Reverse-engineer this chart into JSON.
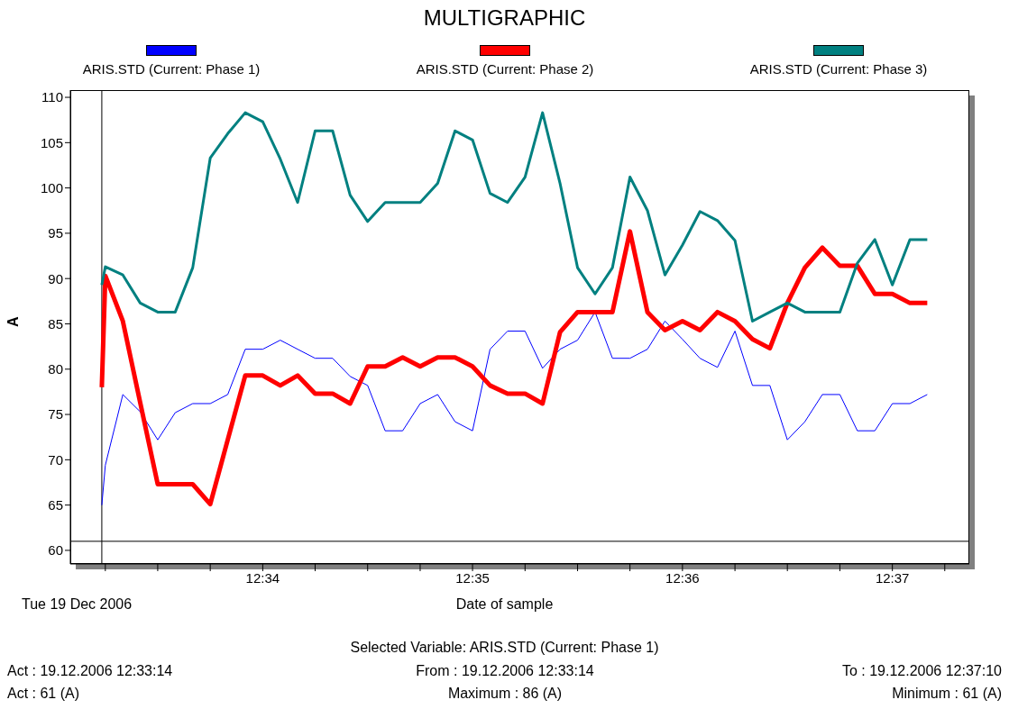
{
  "chart_data": {
    "type": "line",
    "title": "MULTIGRAPHIC",
    "xlabel": "Date of sample",
    "ylabel": "A",
    "x": [
      12.55389,
      12.55417,
      12.55556,
      12.55694,
      12.55833,
      12.55972,
      12.56111,
      12.5625,
      12.56389,
      12.56528,
      12.56667,
      12.56806,
      12.56944,
      12.57083,
      12.57222,
      12.57361,
      12.575,
      12.57639,
      12.57778,
      12.57917,
      12.58056,
      12.58194,
      12.58333,
      12.58472,
      12.58611,
      12.5875,
      12.58889,
      12.59028,
      12.59167,
      12.59306,
      12.59444,
      12.59583,
      12.59722,
      12.59861,
      12.6,
      12.60139,
      12.60278,
      12.60417,
      12.60556,
      12.60694,
      12.60833,
      12.60972,
      12.61111,
      12.6125,
      12.61389,
      12.61528,
      12.61667,
      12.61806,
      12.61944
    ],
    "series": [
      {
        "name": "ARIS.STD (Current: Phase 1)",
        "color": "#0000ff",
        "values": [
          65,
          69.4,
          77.2,
          75.3,
          72.2,
          75.2,
          76.2,
          76.2,
          77.2,
          82.2,
          82.2,
          83.2,
          82.2,
          81.2,
          81.2,
          79.2,
          78.2,
          73.2,
          73.2,
          76.2,
          77.2,
          74.2,
          73.2,
          82.2,
          84.2,
          84.2,
          80.1,
          82.2,
          83.2,
          86.3,
          81.2,
          81.2,
          82.2,
          85.3,
          83.3,
          81.2,
          80.2,
          84.2,
          78.2,
          78.2,
          72.2,
          74.2,
          77.2,
          77.2,
          73.2,
          73.2,
          76.2,
          76.2,
          77.2
        ]
      },
      {
        "name": "ARIS.STD (Current: Phase 2)",
        "color": "#ff0000",
        "values": [
          78,
          90.3,
          85.3,
          76.3,
          67.3,
          67.3,
          67.3,
          65.1,
          72.2,
          79.3,
          79.3,
          78.2,
          79.3,
          77.3,
          77.3,
          76.2,
          80.3,
          80.3,
          81.3,
          80.3,
          81.3,
          81.3,
          80.3,
          78.2,
          77.3,
          77.3,
          76.2,
          84.1,
          86.3,
          86.3,
          86.3,
          95.2,
          86.3,
          84.3,
          85.3,
          84.3,
          86.3,
          85.3,
          83.3,
          82.3,
          87.3,
          91.2,
          93.4,
          91.4,
          91.4,
          88.3,
          88.3,
          87.3,
          87.3
        ]
      },
      {
        "name": "ARIS.STD (Current: Phase 3)",
        "color": "#008080",
        "values": [
          89.3,
          91.3,
          90.4,
          87.3,
          86.3,
          86.3,
          91.2,
          103.3,
          106.0,
          108.3,
          107.3,
          103.2,
          98.4,
          106.3,
          106.3,
          99.2,
          96.3,
          98.4,
          98.4,
          98.4,
          100.5,
          106.3,
          105.3,
          99.4,
          98.4,
          101.2,
          108.3,
          100.5,
          91.2,
          88.3,
          91.2,
          101.2,
          97.5,
          90.4,
          93.7,
          97.4,
          96.4,
          94.2,
          85.3,
          86.3,
          87.3,
          86.3,
          86.3,
          86.3,
          91.7,
          94.3,
          89.3,
          94.3,
          94.3
        ]
      }
    ],
    "xlim": [
      12.55139,
      12.62278
    ],
    "xticks": [
      {
        "value": 12.55417,
        "label": null
      },
      {
        "value": 12.55833,
        "label": null
      },
      {
        "value": 12.5625,
        "label": null
      },
      {
        "value": 12.56667,
        "label": "12:34"
      },
      {
        "value": 12.57083,
        "label": null
      },
      {
        "value": 12.575,
        "label": null
      },
      {
        "value": 12.57917,
        "label": null
      },
      {
        "value": 12.58333,
        "label": "12:35"
      },
      {
        "value": 12.5875,
        "label": null
      },
      {
        "value": 12.59167,
        "label": null
      },
      {
        "value": 12.59583,
        "label": null
      },
      {
        "value": 12.6,
        "label": "12:36"
      },
      {
        "value": 12.60417,
        "label": null
      },
      {
        "value": 12.60833,
        "label": null
      },
      {
        "value": 12.6125,
        "label": null
      },
      {
        "value": 12.61667,
        "label": "12:37"
      },
      {
        "value": 12.62083,
        "label": null
      }
    ],
    "ylim": [
      58.5,
      110.8
    ],
    "yticks": [
      60,
      65,
      70,
      75,
      80,
      85,
      90,
      95,
      100,
      105,
      110
    ],
    "ref_lines": [
      {
        "axis": "x",
        "value": 12.55389,
        "color": "#000000"
      },
      {
        "axis": "y",
        "value": 61,
        "color": "#000000"
      }
    ],
    "legend": "top",
    "grid": false,
    "marker": "none",
    "line_style": "solid",
    "annotations": [
      "Tue 19 Dec 2006",
      "Selected Variable: ARIS.STD (Current: Phase 1)",
      "Act : 19.12.2006 12:33:14",
      "From : 19.12.2006 12:33:14",
      "To : 19.12.2006 12:37:10",
      "Act : 61 (A)",
      "Maximum : 86 (A)",
      "Minimum : 61 (A)"
    ]
  }
}
